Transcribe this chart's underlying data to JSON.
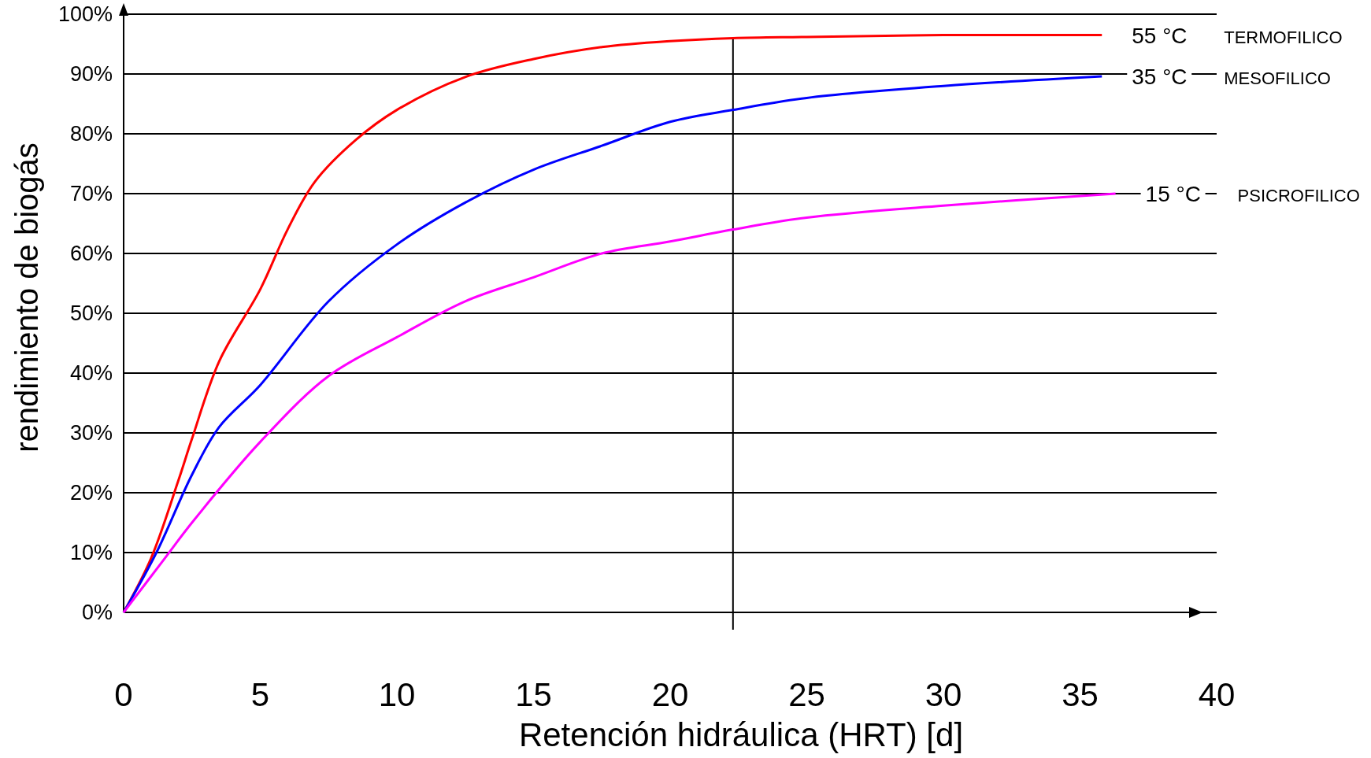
{
  "chart_data": {
    "type": "line",
    "xlabel": "Retención hidráulica (HRT) [d]",
    "ylabel": "rendimiento de biogás",
    "xlim": [
      0,
      40
    ],
    "xticks": [
      0,
      5,
      10,
      15,
      20,
      25,
      30,
      35,
      40
    ],
    "ylim": [
      0,
      100
    ],
    "yticks": [
      {
        "value": 0,
        "label": "0%"
      },
      {
        "value": 10,
        "label": "10%"
      },
      {
        "value": 20,
        "label": "20%"
      },
      {
        "value": 30,
        "label": "30%"
      },
      {
        "value": 40,
        "label": "40%"
      },
      {
        "value": 50,
        "label": "50%"
      },
      {
        "value": 60,
        "label": "60%"
      },
      {
        "value": 70,
        "label": "70%"
      },
      {
        "value": 80,
        "label": "80%"
      },
      {
        "value": 90,
        "label": "90%"
      },
      {
        "value": 100,
        "label": "100%"
      }
    ],
    "grid": "y",
    "marker": "none",
    "line_style": "solid",
    "ref_lines": [
      {
        "axis": "x",
        "value": 22.3,
        "color": "#000000"
      }
    ],
    "annotations": [
      "TERMOFILICO",
      "MESOFILICO",
      "PSICROFILICO"
    ],
    "series": [
      {
        "name": "55 °C",
        "color": "#ff0000",
        "x": [
          0,
          1,
          2,
          2.5,
          3.5,
          5,
          6,
          7,
          8.5,
          10,
          12.5,
          15,
          17.5,
          20,
          22.3,
          25,
          30,
          35.8
        ],
        "values": [
          0,
          9,
          22,
          29,
          42,
          54,
          64,
          72,
          79,
          84,
          89.5,
          92.5,
          94.5,
          95.5,
          96,
          96.2,
          96.5,
          96.5
        ]
      },
      {
        "name": "35 °C",
        "color": "#0000ff",
        "x": [
          0,
          1.2,
          2.5,
          3.5,
          5,
          7.5,
          10,
          12.5,
          15,
          17.5,
          20,
          22.3,
          25,
          30,
          35.8
        ],
        "values": [
          0,
          10,
          23,
          31,
          38,
          52,
          61.5,
          68.5,
          74,
          78,
          82,
          84,
          86,
          88,
          89.6
        ]
      },
      {
        "name": "15 °C",
        "color": "#ff00ff",
        "x": [
          0,
          1.5,
          2.5,
          5,
          7.5,
          10,
          12.5,
          15,
          17.5,
          20,
          22.3,
          25,
          30,
          36.3
        ],
        "values": [
          0,
          9,
          15,
          28.5,
          39.5,
          46,
          52,
          56,
          60,
          62,
          64,
          66,
          68,
          70
        ]
      }
    ]
  }
}
